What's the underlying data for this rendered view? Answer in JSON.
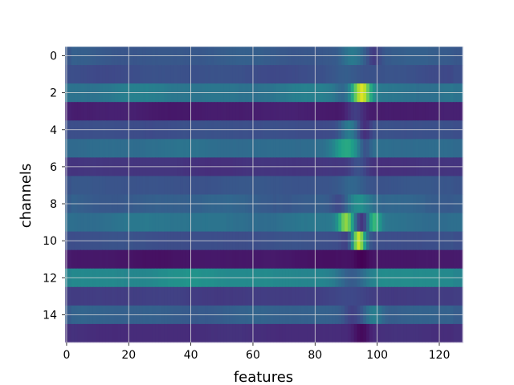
{
  "chart_data": {
    "type": "heatmap",
    "title": "",
    "xlabel": "features",
    "ylabel": "channels",
    "x_range": [
      -0.5,
      127.5
    ],
    "y_range": [
      -0.5,
      15.5
    ],
    "y_inverted": true,
    "colormap": "viridis",
    "grid": true,
    "grid_color": "#dcdcdc",
    "background": "#ffffff",
    "x_ticks": [
      0,
      20,
      40,
      60,
      80,
      100,
      120
    ],
    "y_ticks": [
      0,
      2,
      4,
      6,
      8,
      10,
      12,
      14
    ],
    "n_features": 128,
    "channels": [
      {
        "channel": 0,
        "base": 0.28,
        "var": 0.03,
        "events": [
          {
            "c": 92,
            "w": 2.5,
            "a": 0.14
          },
          {
            "c": 99,
            "w": 1.5,
            "a": -0.1
          }
        ]
      },
      {
        "channel": 1,
        "base": 0.24,
        "var": 0.03,
        "events": [
          {
            "c": 90,
            "w": 3.0,
            "a": 0.05
          }
        ]
      },
      {
        "channel": 2,
        "base": 0.4,
        "var": 0.05,
        "events": [
          {
            "c": 95,
            "w": 2.2,
            "a": 0.55
          },
          {
            "c": 89,
            "w": 2.0,
            "a": -0.08
          }
        ]
      },
      {
        "channel": 3,
        "base": 0.08,
        "var": 0.02,
        "events": [
          {
            "c": 93,
            "w": 2.0,
            "a": 0.12
          }
        ]
      },
      {
        "channel": 4,
        "base": 0.24,
        "var": 0.02,
        "events": [
          {
            "c": 91,
            "w": 2.0,
            "a": 0.18
          },
          {
            "c": 96,
            "w": 1.5,
            "a": -0.12
          }
        ]
      },
      {
        "channel": 5,
        "base": 0.36,
        "var": 0.03,
        "events": [
          {
            "c": 90,
            "w": 3.0,
            "a": 0.22
          },
          {
            "c": 96,
            "w": 1.5,
            "a": -0.15
          }
        ]
      },
      {
        "channel": 6,
        "base": 0.15,
        "var": 0.02,
        "events": [
          {
            "c": 94,
            "w": 2.0,
            "a": 0.1
          }
        ]
      },
      {
        "channel": 7,
        "base": 0.26,
        "var": 0.02,
        "events": [
          {
            "c": 92,
            "w": 3.0,
            "a": 0.08
          }
        ]
      },
      {
        "channel": 8,
        "base": 0.3,
        "var": 0.04,
        "events": [
          {
            "c": 94,
            "w": 3.0,
            "a": 0.2
          },
          {
            "c": 88,
            "w": 2.0,
            "a": -0.1
          }
        ]
      },
      {
        "channel": 9,
        "base": 0.38,
        "var": 0.04,
        "events": [
          {
            "c": 90,
            "w": 1.8,
            "a": 0.45
          },
          {
            "c": 99,
            "w": 1.5,
            "a": 0.3
          },
          {
            "c": 95,
            "w": 1.8,
            "a": -0.25
          }
        ]
      },
      {
        "channel": 10,
        "base": 0.24,
        "var": 0.02,
        "events": [
          {
            "c": 94,
            "w": 1.6,
            "a": 0.7
          },
          {
            "c": 91,
            "w": 1.5,
            "a": -0.08
          }
        ]
      },
      {
        "channel": 11,
        "base": 0.06,
        "var": 0.02,
        "events": [
          {
            "c": 95,
            "w": 1.8,
            "a": -0.06
          }
        ]
      },
      {
        "channel": 12,
        "base": 0.48,
        "var": 0.04,
        "events": [
          {
            "c": 92,
            "w": 4.0,
            "a": -0.22
          }
        ]
      },
      {
        "channel": 13,
        "base": 0.18,
        "var": 0.02,
        "events": [
          {
            "c": 92,
            "w": 4.0,
            "a": 0.03
          }
        ]
      },
      {
        "channel": 14,
        "base": 0.3,
        "var": 0.03,
        "events": [
          {
            "c": 99,
            "w": 2.0,
            "a": 0.15
          },
          {
            "c": 92,
            "w": 2.0,
            "a": -0.1
          }
        ]
      },
      {
        "channel": 15,
        "base": 0.13,
        "var": 0.02,
        "events": [
          {
            "c": 95,
            "w": 2.0,
            "a": -0.1
          }
        ]
      }
    ]
  }
}
